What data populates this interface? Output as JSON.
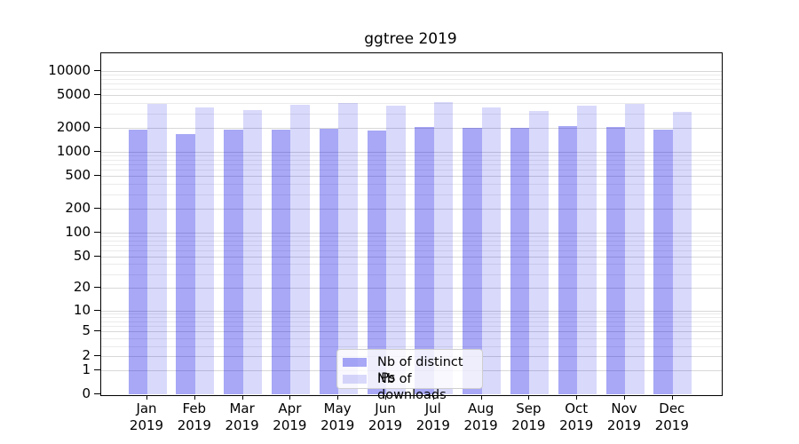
{
  "title": "ggtree 2019",
  "chart_data": {
    "type": "bar",
    "title": "ggtree 2019",
    "categories": [
      "Jan 2019",
      "Feb 2019",
      "Mar 2019",
      "Apr 2019",
      "May 2019",
      "Jun 2019",
      "Jul 2019",
      "Aug 2019",
      "Sep 2019",
      "Oct 2019",
      "Nov 2019",
      "Dec 2019"
    ],
    "series": [
      {
        "name": "Nb of distinct IPs",
        "color": "rgba(0,0,230,0.34)",
        "values": [
          1900,
          1650,
          1900,
          1900,
          1960,
          1860,
          2060,
          1970,
          2000,
          2100,
          2020,
          1880
        ]
      },
      {
        "name": "Nb of downloads",
        "color": "rgba(0,0,230,0.15)",
        "values": [
          3920,
          3540,
          3300,
          3830,
          4040,
          3770,
          4090,
          3540,
          3250,
          3720,
          3920,
          3160
        ]
      }
    ],
    "xlabel": "",
    "ylabel": "",
    "y_scale": "log10(1+x)",
    "y_tick_values": [
      10000,
      5000,
      2000,
      1000,
      500,
      200,
      100,
      50,
      20,
      10,
      5,
      2,
      1,
      0
    ],
    "y_tick_labels": [
      "10000",
      "5000",
      "2000",
      "1000",
      "500",
      "200",
      "100",
      "50",
      "20",
      "10",
      "5",
      "2",
      "1",
      "0"
    ],
    "ylim": [
      0,
      16500
    ],
    "grid": "horizontal log minor gridlines, light gray",
    "legend_position": "bottom-center",
    "bar_colors_note": "bars are semi-transparent; gridlines show through"
  }
}
